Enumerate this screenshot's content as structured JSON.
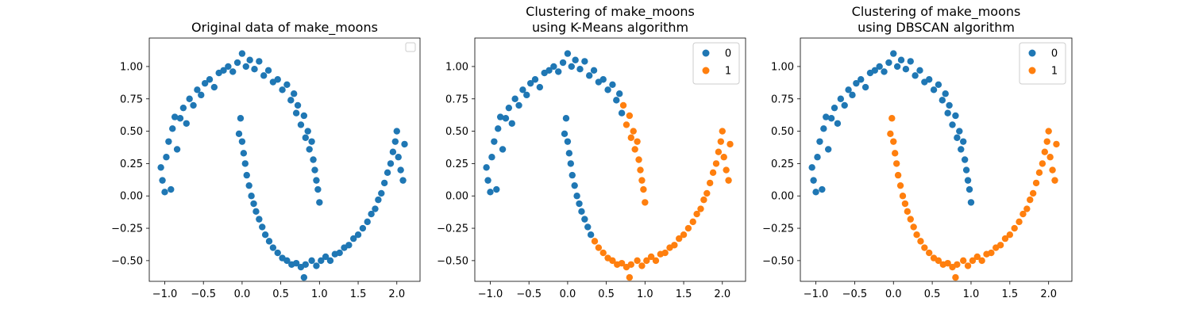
{
  "palette": {
    "class0": "#1f77b4",
    "class1": "#ff7f0e"
  },
  "chart_data": [
    {
      "type": "scatter",
      "title_lines": [
        "Original data of make_moons"
      ],
      "xlabel": "",
      "ylabel": "",
      "xlim": [
        -1.2,
        2.3
      ],
      "ylim": [
        -0.66,
        1.22
      ],
      "xticks": [
        -1.0,
        -0.5,
        0.0,
        0.5,
        1.0,
        1.5,
        2.0
      ],
      "yticks": [
        -0.5,
        -0.25,
        0.0,
        0.25,
        0.5,
        0.75,
        1.0
      ],
      "xtick_labels": [
        "−1.0",
        "−0.5",
        "0.0",
        "0.5",
        "1.0",
        "1.5",
        "2.0"
      ],
      "ytick_labels": [
        "−0.50",
        "−0.25",
        "0.00",
        "0.25",
        "0.50",
        "0.75",
        "1.00"
      ],
      "grid": false,
      "legend": {
        "placement": "top-right",
        "entries": []
      },
      "coloring": "single",
      "series_colors": [
        "#1f77b4"
      ]
    },
    {
      "type": "scatter",
      "title_lines": [
        "Clustering of make_moons",
        " using K-Means algorithm"
      ],
      "xlabel": "",
      "ylabel": "",
      "xlim": [
        -1.2,
        2.3
      ],
      "ylim": [
        -0.66,
        1.22
      ],
      "xticks": [
        -1.0,
        -0.5,
        0.0,
        0.5,
        1.0,
        1.5,
        2.0
      ],
      "yticks": [
        -0.5,
        -0.25,
        0.0,
        0.25,
        0.5,
        0.75,
        1.0
      ],
      "xtick_labels": [
        "−1.0",
        "−0.5",
        "0.0",
        "0.5",
        "1.0",
        "1.5",
        "2.0"
      ],
      "ytick_labels": [
        "−0.50",
        "−0.25",
        "0.00",
        "0.25",
        "0.50",
        "0.75",
        "1.00"
      ],
      "grid": false,
      "legend": {
        "placement": "top-right",
        "entries": [
          "0",
          "1"
        ]
      },
      "coloring": "kmeans",
      "series_colors": [
        "#1f77b4",
        "#ff7f0e"
      ]
    },
    {
      "type": "scatter",
      "title_lines": [
        "Clustering of make_moons",
        " using DBSCAN algorithm"
      ],
      "xlabel": "",
      "ylabel": "",
      "xlim": [
        -1.2,
        2.3
      ],
      "ylim": [
        -0.66,
        1.22
      ],
      "xticks": [
        -1.0,
        -0.5,
        0.0,
        0.5,
        1.0,
        1.5,
        2.0
      ],
      "yticks": [
        -0.5,
        -0.25,
        0.0,
        0.25,
        0.5,
        0.75,
        1.0
      ],
      "xtick_labels": [
        "−1.0",
        "−0.5",
        "0.0",
        "0.5",
        "1.0",
        "1.5",
        "2.0"
      ],
      "ytick_labels": [
        "−0.50",
        "−0.25",
        "0.00",
        "0.25",
        "0.50",
        "0.75",
        "1.00"
      ],
      "grid": false,
      "legend": {
        "placement": "top-right",
        "entries": [
          "0",
          "1"
        ]
      },
      "coloring": "moon",
      "series_colors": [
        "#1f77b4",
        "#ff7f0e"
      ]
    }
  ],
  "dataset": {
    "points": [
      [
        -1.05,
        0.22,
        0
      ],
      [
        -1.03,
        0.12,
        0
      ],
      [
        -1.0,
        0.03,
        0
      ],
      [
        -0.98,
        0.3,
        0
      ],
      [
        -0.95,
        0.42,
        0
      ],
      [
        -0.92,
        0.05,
        0
      ],
      [
        -0.9,
        0.52,
        0
      ],
      [
        -0.87,
        0.61,
        0
      ],
      [
        -0.84,
        0.36,
        0
      ],
      [
        -0.8,
        0.6,
        0
      ],
      [
        -0.76,
        0.68,
        0
      ],
      [
        -0.72,
        0.56,
        0
      ],
      [
        -0.68,
        0.75,
        0
      ],
      [
        -0.63,
        0.7,
        0
      ],
      [
        -0.58,
        0.82,
        0
      ],
      [
        -0.53,
        0.78,
        0
      ],
      [
        -0.48,
        0.87,
        0
      ],
      [
        -0.42,
        0.9,
        0
      ],
      [
        -0.36,
        0.84,
        0
      ],
      [
        -0.3,
        0.95,
        0
      ],
      [
        -0.24,
        0.97,
        0
      ],
      [
        -0.18,
        1.0,
        0
      ],
      [
        -0.12,
        0.96,
        0
      ],
      [
        -0.06,
        1.03,
        0
      ],
      [
        0.0,
        1.1,
        0
      ],
      [
        0.05,
        1.0,
        0
      ],
      [
        0.1,
        1.05,
        0
      ],
      [
        0.16,
        0.98,
        0
      ],
      [
        0.22,
        1.04,
        0
      ],
      [
        0.28,
        0.93,
        0
      ],
      [
        0.34,
        0.97,
        0
      ],
      [
        0.4,
        0.88,
        0
      ],
      [
        0.46,
        0.9,
        0
      ],
      [
        0.52,
        0.82,
        0
      ],
      [
        0.58,
        0.86,
        0
      ],
      [
        0.63,
        0.74,
        0
      ],
      [
        0.67,
        0.79,
        0
      ],
      [
        0.7,
        0.64,
        0
      ],
      [
        0.72,
        0.7,
        0
      ],
      [
        0.76,
        0.55,
        0
      ],
      [
        0.8,
        0.62,
        0
      ],
      [
        0.82,
        0.45,
        0
      ],
      [
        0.85,
        0.5,
        0
      ],
      [
        0.87,
        0.36,
        0
      ],
      [
        0.9,
        0.42,
        0
      ],
      [
        0.92,
        0.28,
        0
      ],
      [
        0.94,
        0.2,
        0
      ],
      [
        0.96,
        0.12,
        0
      ],
      [
        0.98,
        0.05,
        0
      ],
      [
        1.0,
        -0.05,
        0
      ],
      [
        -0.02,
        0.6,
        1
      ],
      [
        -0.04,
        0.48,
        1
      ],
      [
        0.0,
        0.42,
        1
      ],
      [
        0.02,
        0.33,
        1
      ],
      [
        0.04,
        0.25,
        1
      ],
      [
        0.06,
        0.16,
        1
      ],
      [
        0.09,
        0.08,
        1
      ],
      [
        0.12,
        0.0,
        1
      ],
      [
        0.15,
        -0.06,
        1
      ],
      [
        0.18,
        -0.12,
        1
      ],
      [
        0.22,
        -0.18,
        1
      ],
      [
        0.26,
        -0.24,
        1
      ],
      [
        0.3,
        -0.3,
        1
      ],
      [
        0.35,
        -0.35,
        1
      ],
      [
        0.4,
        -0.4,
        1
      ],
      [
        0.46,
        -0.44,
        1
      ],
      [
        0.52,
        -0.48,
        1
      ],
      [
        0.58,
        -0.5,
        1
      ],
      [
        0.64,
        -0.53,
        1
      ],
      [
        0.7,
        -0.52,
        1
      ],
      [
        0.76,
        -0.55,
        1
      ],
      [
        0.82,
        -0.53,
        1
      ],
      [
        0.8,
        -0.63,
        1
      ],
      [
        0.9,
        -0.5,
        1
      ],
      [
        0.96,
        -0.54,
        1
      ],
      [
        1.02,
        -0.5,
        1
      ],
      [
        1.08,
        -0.47,
        1
      ],
      [
        1.14,
        -0.5,
        1
      ],
      [
        1.2,
        -0.45,
        1
      ],
      [
        1.26,
        -0.44,
        1
      ],
      [
        1.32,
        -0.4,
        1
      ],
      [
        1.38,
        -0.38,
        1
      ],
      [
        1.44,
        -0.33,
        1
      ],
      [
        1.5,
        -0.3,
        1
      ],
      [
        1.56,
        -0.25,
        1
      ],
      [
        1.62,
        -0.2,
        1
      ],
      [
        1.67,
        -0.14,
        1
      ],
      [
        1.72,
        -0.1,
        1
      ],
      [
        1.76,
        -0.03,
        1
      ],
      [
        1.8,
        0.02,
        1
      ],
      [
        1.84,
        0.1,
        1
      ],
      [
        1.88,
        0.18,
        1
      ],
      [
        1.92,
        0.25,
        1
      ],
      [
        1.95,
        0.34,
        1
      ],
      [
        1.98,
        0.42,
        1
      ],
      [
        2.0,
        0.5,
        1
      ],
      [
        2.02,
        0.3,
        1
      ],
      [
        2.05,
        0.2,
        1
      ],
      [
        2.08,
        0.12,
        1
      ],
      [
        2.1,
        0.4,
        1
      ]
    ]
  }
}
